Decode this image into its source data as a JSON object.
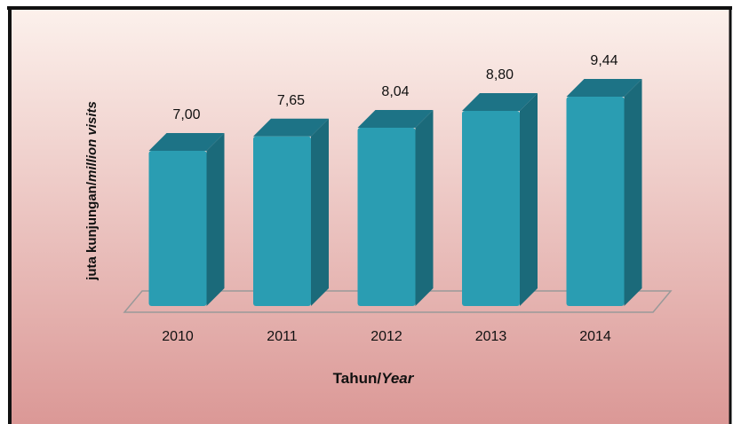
{
  "chart_data": {
    "type": "bar3d",
    "y_label_parts": [
      "juta kunjungan/",
      "million visits"
    ],
    "x_label_parts": [
      "Tahun/",
      "Year"
    ],
    "categories": [
      "2010",
      "2011",
      "2012",
      "2013",
      "2014"
    ],
    "values": [
      7.0,
      7.65,
      8.04,
      8.8,
      9.44
    ],
    "value_labels": [
      "7,00",
      "7,65",
      "8,04",
      "8,80",
      "9,44"
    ],
    "color": "#2a9db2",
    "ylim": [
      0,
      10
    ]
  }
}
